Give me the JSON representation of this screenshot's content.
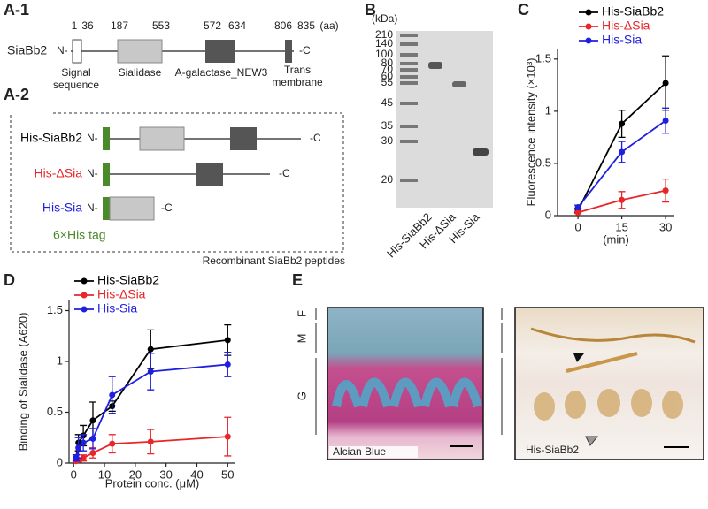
{
  "panels": {
    "a1": "A-1",
    "a2": "A-2",
    "b": "B",
    "c": "C",
    "d": "D",
    "e": "E"
  },
  "domain_map": {
    "protein": "SiaBb2",
    "n_term": "N-",
    "c_term": "-C",
    "unit": "(aa)",
    "positions": [
      "1",
      "36",
      "187",
      "553",
      "572",
      "634",
      "806",
      "835"
    ],
    "domains": [
      [
        "Signal",
        "sequence"
      ],
      [
        "Sialidase"
      ],
      [
        "A-galactase_NEW3"
      ],
      [
        "Trans",
        "membrane"
      ]
    ]
  },
  "constructs": [
    {
      "name": "His-SiaBb2",
      "n_term": "N-",
      "c_term": "-C"
    },
    {
      "name": "His-ΔSia",
      "n_term": "N-",
      "c_term": "-C"
    },
    {
      "name": "His-Sia",
      "n_term": "N-",
      "c_term": "-C"
    }
  ],
  "tag_label": "6×His tag",
  "constructs_caption": "Recombinant SiaBb2 peptides",
  "gel": {
    "unit": "(kDa)",
    "markers": [
      "210",
      "140",
      "100",
      "80",
      "70",
      "60",
      "55",
      "45",
      "35",
      "30",
      "20"
    ],
    "lanes": [
      "His-SiaBb2",
      "His-ΔSia",
      "His-Sia"
    ]
  },
  "chart_data": [
    {
      "type": "line",
      "y_label": "Fluorescence intensity (×10³)",
      "x_label": "(min)",
      "x": [
        0,
        15,
        30
      ],
      "xlim": [
        -7,
        33
      ],
      "xticks": [
        0,
        15,
        30
      ],
      "ylim": [
        0,
        1.6
      ],
      "yticks": [
        0,
        0.5,
        1,
        1.5
      ],
      "legend": "upper right",
      "series": [
        {
          "name": "His-SiaBb2",
          "color": "#000000",
          "values": [
            0.05,
            0.88,
            1.27
          ],
          "errors": [
            0.02,
            0.13,
            0.26
          ]
        },
        {
          "name": "His-ΔSia",
          "color": "#e8262a",
          "values": [
            0.03,
            0.15,
            0.24
          ],
          "errors": [
            0.01,
            0.08,
            0.11
          ]
        },
        {
          "name": "His-Sia",
          "color": "#1f1fe0",
          "values": [
            0.08,
            0.61,
            0.91
          ],
          "errors": [
            0.02,
            0.1,
            0.12
          ]
        }
      ]
    },
    {
      "type": "line",
      "y_label": "Binding of Sialidase (A620)",
      "x_label": "Protein conc. (μM)",
      "x": [
        0.78,
        1.56,
        3.13,
        6.25,
        12.5,
        25,
        50
      ],
      "xlim": [
        -1.5,
        52.5
      ],
      "xticks": [
        0,
        10,
        20,
        30,
        40,
        50
      ],
      "ylim": [
        0,
        1.6
      ],
      "yticks": [
        0,
        0.5,
        1,
        1.5
      ],
      "legend": "upper left",
      "series": [
        {
          "name": "His-SiaBb2",
          "color": "#000000",
          "values": [
            0.05,
            0.2,
            0.27,
            0.42,
            0.56,
            1.12,
            1.21
          ],
          "errors": [
            0.03,
            0.08,
            0.1,
            0.18,
            0.05,
            0.19,
            0.15
          ]
        },
        {
          "name": "His-ΔSia",
          "color": "#e8262a",
          "values": [
            0.02,
            0.03,
            0.05,
            0.1,
            0.19,
            0.21,
            0.26
          ],
          "errors": [
            0.01,
            0.02,
            0.03,
            0.05,
            0.09,
            0.12,
            0.19
          ]
        },
        {
          "name": "His-Sia",
          "color": "#1f1fe0",
          "values": [
            0.05,
            0.15,
            0.2,
            0.24,
            0.67,
            0.9,
            0.97
          ],
          "errors": [
            0.03,
            0.1,
            0.08,
            0.1,
            0.18,
            0.18,
            0.12
          ]
        }
      ]
    }
  ],
  "histology": {
    "layers": [
      "F",
      "M",
      "G"
    ],
    "images": [
      "Alcian Blue",
      "His-SiaBb2"
    ]
  }
}
